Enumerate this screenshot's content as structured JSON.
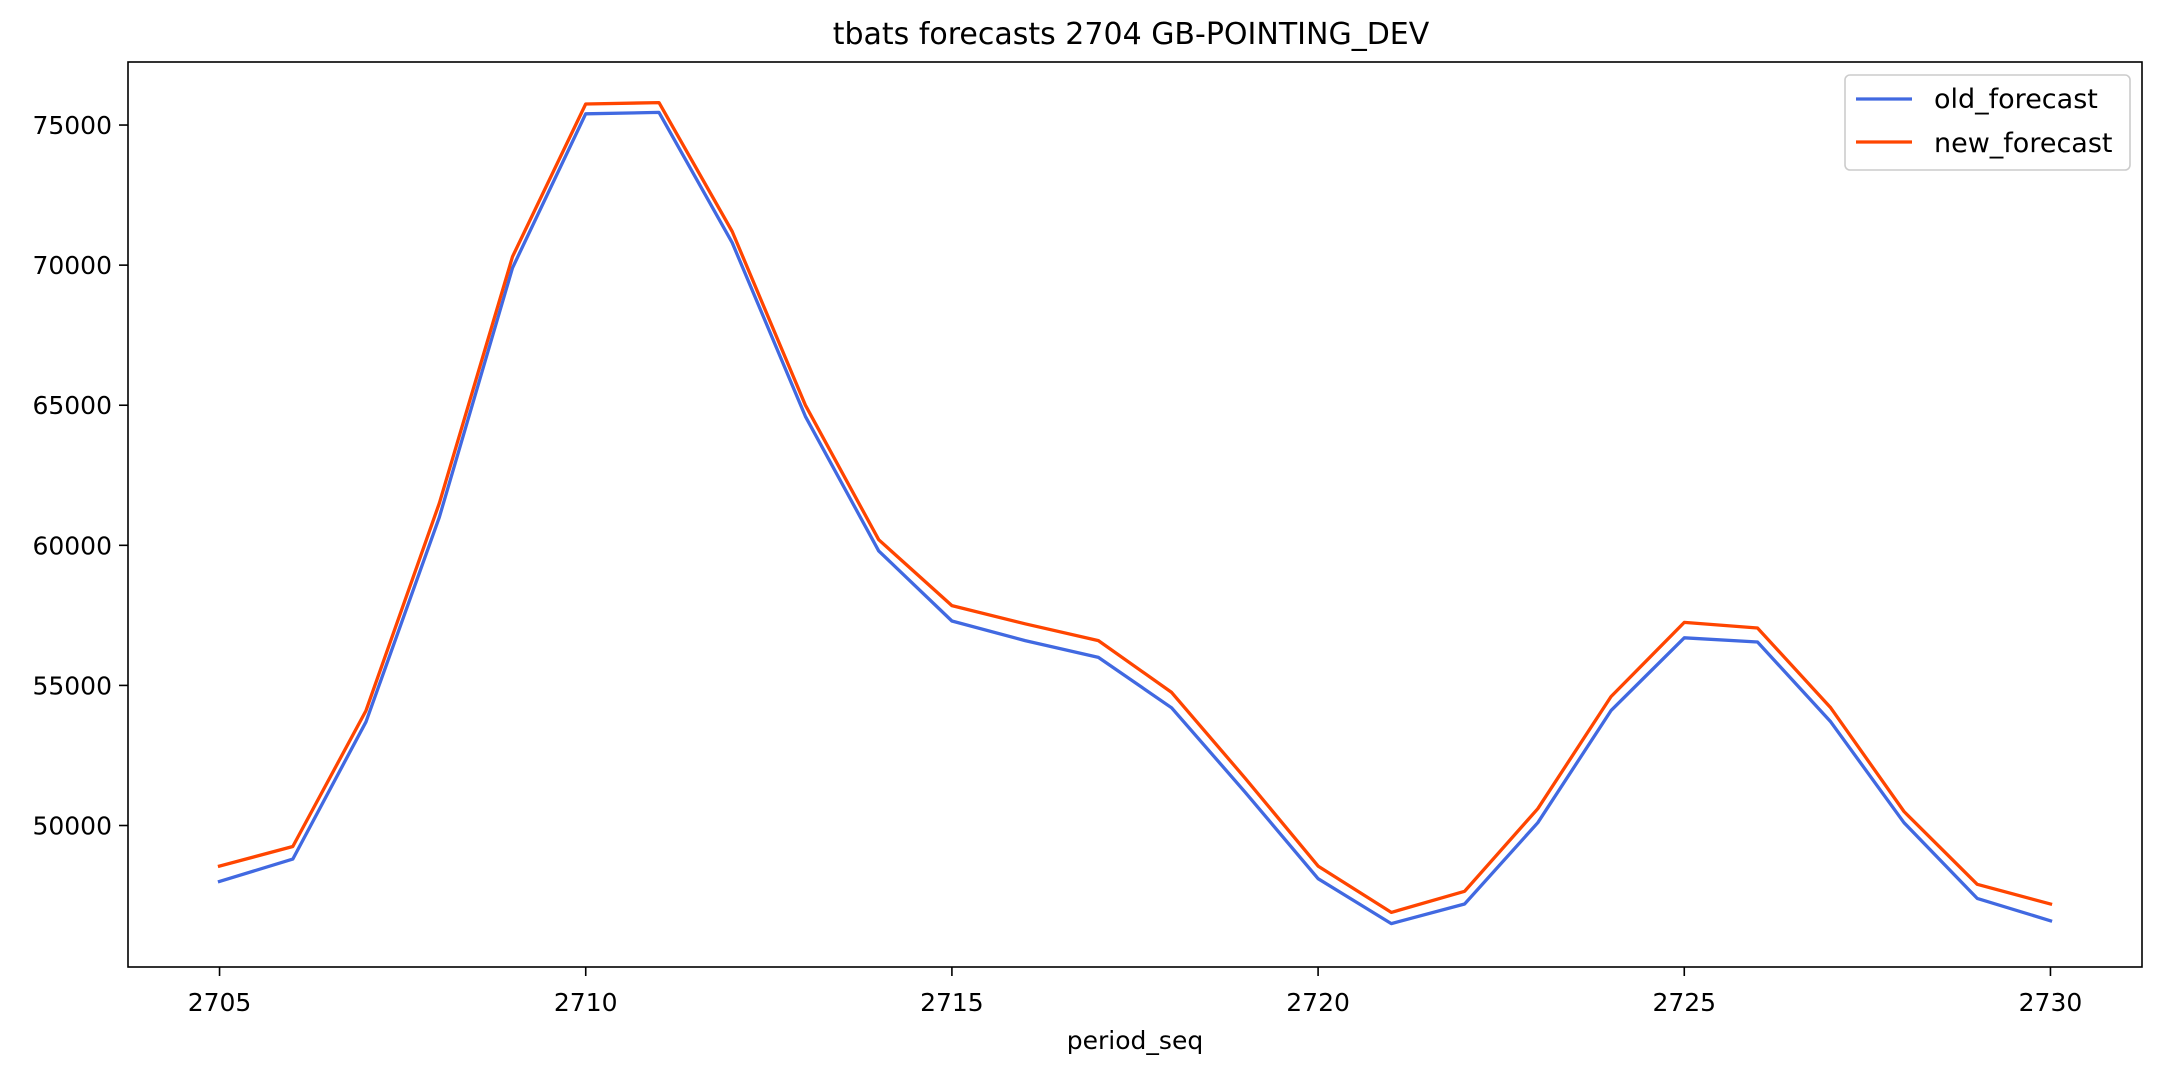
{
  "chart_data": {
    "type": "line",
    "title": "tbats forecasts 2704 GB-POINTING_DEV",
    "xlabel": "period_seq",
    "ylabel": "",
    "x": [
      2705,
      2706,
      2707,
      2708,
      2709,
      2710,
      2711,
      2712,
      2713,
      2714,
      2715,
      2716,
      2717,
      2718,
      2719,
      2720,
      2721,
      2722,
      2723,
      2724,
      2725,
      2726,
      2727,
      2728,
      2729,
      2730
    ],
    "series": [
      {
        "name": "old_forecast",
        "color": "#4169e1",
        "values": [
          48000,
          48800,
          53700,
          61000,
          69900,
          75400,
          75450,
          70800,
          64600,
          59800,
          57300,
          56600,
          56000,
          54200,
          51200,
          48100,
          46500,
          47200,
          50100,
          54100,
          56700,
          56550,
          53700,
          50100,
          47400,
          46600
        ]
      },
      {
        "name": "new_forecast",
        "color": "#ff4500",
        "values": [
          48550,
          49250,
          54100,
          61500,
          70300,
          75750,
          75800,
          71200,
          65000,
          60200,
          57850,
          57200,
          56600,
          54750,
          51700,
          48550,
          46900,
          47650,
          50600,
          54600,
          57250,
          57050,
          54200,
          50500,
          47900,
          47200
        ]
      }
    ],
    "xlim": [
      2703.75,
      2731.25
    ],
    "ylim": [
      44950,
      77250
    ],
    "xticks": [
      2705,
      2710,
      2715,
      2720,
      2725,
      2730
    ],
    "yticks": [
      50000,
      55000,
      60000,
      65000,
      70000,
      75000
    ],
    "grid": false,
    "legend": "top-right"
  }
}
